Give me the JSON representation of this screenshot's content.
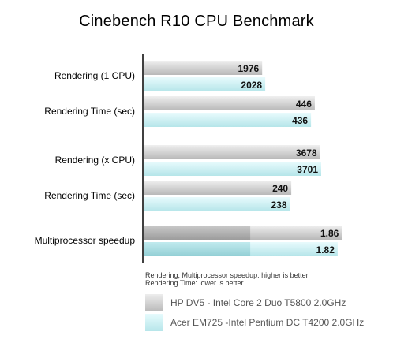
{
  "chart_data": {
    "type": "bar",
    "orientation": "horizontal",
    "title": "Cinebench R10 CPU Benchmark",
    "groups": [
      {
        "category": "Rendering (1 CPU)",
        "values": [
          1976,
          2028
        ],
        "max": 4000
      },
      {
        "category": "Rendering Time (sec)",
        "values": [
          446,
          436
        ],
        "max": 625
      },
      {
        "category": "Rendering (x CPU)",
        "values": [
          3678,
          3701
        ],
        "max": 5000
      },
      {
        "category": "Rendering Time (sec)",
        "values": [
          240,
          238
        ],
        "max": 390
      },
      {
        "category": "Multiprocessor speedup",
        "values": [
          1.86,
          1.82
        ],
        "max": 2.25,
        "split": 1.0
      }
    ],
    "series": [
      {
        "name": "HP DV5 - Intel Core 2 Duo T5800 2.0GHz",
        "color": "#c4c4c4"
      },
      {
        "name": "Acer EM725 -Intel Pentium DC T4200 2.0GHz",
        "color": "#c3ecef"
      }
    ],
    "notes": [
      "Rendering, Multiprocessor speedup: higher is better",
      "Rendering Time: lower is better"
    ],
    "grid": false,
    "legend_position": "bottom"
  }
}
